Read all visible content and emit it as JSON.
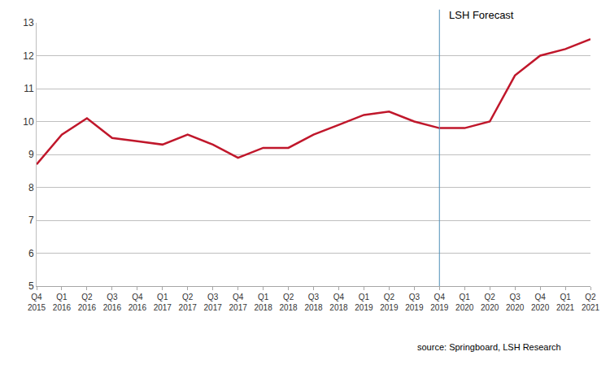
{
  "chart_data": {
    "type": "line",
    "categories": [
      "Q4 2015",
      "Q1 2016",
      "Q2 2016",
      "Q3 2016",
      "Q4 2016",
      "Q1 2017",
      "Q2 2017",
      "Q3 2017",
      "Q4 2017",
      "Q1 2018",
      "Q2 2018",
      "Q3 2018",
      "Q4 2018",
      "Q1 2019",
      "Q2 2019",
      "Q3 2019",
      "Q4 2019",
      "Q1 2020",
      "Q2 2020",
      "Q3 2020",
      "Q4 2020",
      "Q1 2021",
      "Q2 2021"
    ],
    "values": [
      8.7,
      9.6,
      10.1,
      9.5,
      9.4,
      9.3,
      9.6,
      9.3,
      8.9,
      9.2,
      9.2,
      9.6,
      9.9,
      10.2,
      10.3,
      10.0,
      9.8,
      9.8,
      10.0,
      11.4,
      12.0,
      12.2,
      12.5
    ],
    "color": "#c0172b",
    "ylim": [
      5,
      13
    ],
    "yticks": [
      5,
      6,
      7,
      8,
      9,
      10,
      11,
      12,
      13
    ],
    "grid": true,
    "annotations": [
      {
        "text": "LSH Forecast",
        "x": "Q4 2019"
      }
    ],
    "source": "source: Springboard, LSH Research"
  }
}
